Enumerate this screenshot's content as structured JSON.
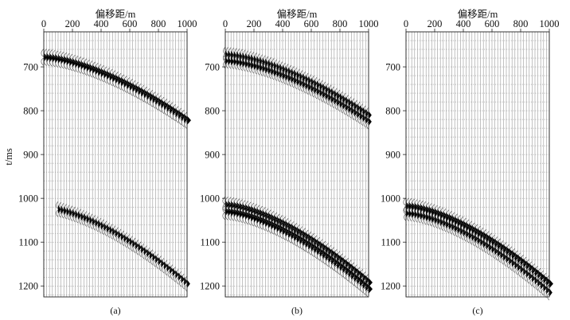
{
  "chart_data": [
    {
      "type": "seismic-section",
      "caption": "(a)",
      "xlabel": "偏移距/m",
      "ylabel": "t/ms",
      "xlim": [
        0,
        1000
      ],
      "ylim": [
        620,
        1225
      ],
      "x_ticks": [
        0,
        200,
        400,
        600,
        800,
        1000
      ],
      "y_ticks": [
        700,
        800,
        900,
        1000,
        1100,
        1200
      ],
      "events": [
        {
          "t0": 678,
          "t_end": 822,
          "x_start": 0,
          "x_end": 1000,
          "amplitude": "strong"
        },
        {
          "t0": 1020,
          "t_end": 1195,
          "x_start": 100,
          "x_end": 1000,
          "amplitude": "moderate",
          "start_time": 1022
        }
      ]
    },
    {
      "type": "seismic-section",
      "caption": "(b)",
      "xlabel": "偏移距/m",
      "ylabel": "",
      "xlim": [
        0,
        1000
      ],
      "ylim": [
        620,
        1225
      ],
      "x_ticks": [
        0,
        200,
        400,
        600,
        800,
        1000
      ],
      "y_ticks": [
        700,
        800,
        900,
        1000,
        1100,
        1200
      ],
      "events": [
        {
          "t0": 672,
          "t_end": 810,
          "x_start": 0,
          "x_end": 1000,
          "amplitude": "moderate"
        },
        {
          "t0": 686,
          "t_end": 825,
          "x_start": 0,
          "x_end": 1000,
          "amplitude": "moderate"
        },
        {
          "t0": 1015,
          "t_end": 1192,
          "x_start": 0,
          "x_end": 1000,
          "amplitude": "strong"
        },
        {
          "t0": 1030,
          "t_end": 1207,
          "x_start": 0,
          "x_end": 1000,
          "amplitude": "strong"
        }
      ]
    },
    {
      "type": "seismic-section",
      "caption": "(c)",
      "xlabel": "偏移距/m",
      "ylabel": "",
      "xlim": [
        0,
        1000
      ],
      "ylim": [
        620,
        1225
      ],
      "x_ticks": [
        0,
        200,
        400,
        600,
        800,
        1000
      ],
      "y_ticks": [
        700,
        800,
        900,
        1000,
        1100,
        1200
      ],
      "events": [
        {
          "t0": 1018,
          "t_end": 1195,
          "x_start": 0,
          "x_end": 1000,
          "amplitude": "strong"
        },
        {
          "t0": 1034,
          "t_end": 1215,
          "x_start": 0,
          "x_end": 1000,
          "amplitude": "moderate"
        }
      ]
    }
  ]
}
